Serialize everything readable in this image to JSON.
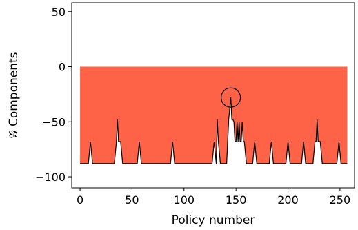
{
  "chart_data": {
    "type": "area",
    "xlabel": "Policy number",
    "ylabel": "𝒢 Components",
    "xlim": [
      -8,
      264
    ],
    "ylim": [
      -110,
      58
    ],
    "x_ticks": [
      0,
      50,
      100,
      150,
      200,
      250
    ],
    "x_tick_labels": [
      "0",
      "50",
      "100",
      "150",
      "200",
      "250"
    ],
    "y_ticks": [
      50,
      0,
      -50,
      -100
    ],
    "y_tick_labels": [
      "50",
      "0",
      "−50",
      "−100"
    ],
    "grid": false,
    "legend": "none",
    "fill": {
      "color": "#ff6347",
      "y_top": 0
    },
    "line": {
      "color": "#000000"
    },
    "annotation": {
      "shape": "circle",
      "x": 145,
      "y": -28
    },
    "series": [
      {
        "x": [
          0,
          8,
          10,
          12,
          33,
          35,
          36,
          37,
          39,
          41,
          55,
          57,
          59,
          87,
          89,
          91,
          127,
          129,
          131,
          132,
          133,
          135,
          141,
          143,
          145,
          146,
          147,
          148,
          149,
          150,
          151,
          152,
          153,
          154,
          155,
          156,
          157,
          158,
          160,
          166,
          168,
          170,
          182,
          184,
          186,
          198,
          200,
          202,
          213,
          215,
          217,
          224,
          226,
          227,
          228,
          229,
          230,
          231,
          233,
          247,
          249,
          251,
          257
        ],
        "y": [
          -88,
          -88,
          -68,
          -88,
          -88,
          -68,
          -48,
          -68,
          -68,
          -88,
          -88,
          -68,
          -88,
          -88,
          -68,
          -88,
          -88,
          -68,
          -88,
          -48,
          -68,
          -88,
          -88,
          -48,
          -28,
          -48,
          -48,
          -50,
          -68,
          -68,
          -50,
          -68,
          -50,
          -68,
          -68,
          -50,
          -68,
          -68,
          -88,
          -88,
          -68,
          -88,
          -88,
          -68,
          -88,
          -88,
          -68,
          -88,
          -88,
          -68,
          -88,
          -88,
          -68,
          -68,
          -48,
          -68,
          -68,
          -68,
          -88,
          -88,
          -68,
          -88,
          -88
        ]
      }
    ]
  }
}
